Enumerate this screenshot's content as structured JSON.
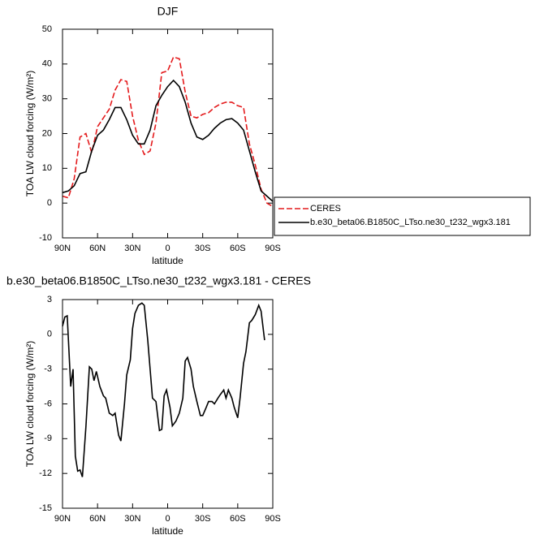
{
  "chart_data": [
    {
      "type": "line",
      "title": "DJF",
      "x": [
        90,
        85,
        80,
        75,
        70,
        65,
        60,
        55,
        50,
        45,
        40,
        35,
        30,
        25,
        20,
        15,
        10,
        5,
        0,
        -5,
        -10,
        -15,
        -20,
        -25,
        -30,
        -35,
        -40,
        -45,
        -50,
        -55,
        -60,
        -65,
        -70,
        -75,
        -80,
        -85,
        -90
      ],
      "series": [
        {
          "name": "CERES",
          "color": "#e41a1c",
          "dashed": true,
          "values": [
            2,
            1.5,
            7,
            19,
            20,
            14.5,
            22,
            24.5,
            27,
            32.5,
            35.5,
            35,
            25,
            18,
            14,
            15,
            23,
            37.5,
            38,
            42,
            41.5,
            32,
            25,
            24.5,
            25.5,
            26,
            27.5,
            28.5,
            29,
            29,
            28,
            27.5,
            17,
            11,
            4,
            0,
            -1
          ]
        },
        {
          "name": "b.e30_beta06.B1850C_LTso.ne30_t232_wgx3.181",
          "color": "#000000",
          "dashed": false,
          "values": [
            3,
            3.5,
            5,
            8.5,
            9,
            15,
            19.5,
            21,
            24,
            27.5,
            27.5,
            24,
            19.5,
            17,
            17,
            21,
            28,
            31,
            33.5,
            35.3,
            33.5,
            29,
            23,
            19,
            18.3,
            19.5,
            21.5,
            23,
            24,
            24.3,
            23,
            21,
            15,
            9,
            3.5,
            2,
            0.5
          ]
        }
      ],
      "xlim": [
        90,
        -90
      ],
      "xticks": [
        {
          "value": 90,
          "label": "90N"
        },
        {
          "value": 60,
          "label": "60N"
        },
        {
          "value": 30,
          "label": "30N"
        },
        0,
        {
          "value": -30,
          "label": "30S"
        },
        {
          "value": -60,
          "label": "60S"
        },
        {
          "value": -90,
          "label": "90S"
        }
      ],
      "ylim": [
        -10,
        50
      ],
      "yticks": [
        -10,
        0,
        10,
        20,
        30,
        40,
        50
      ],
      "xlabel": "latitude",
      "ylabel": "TOA LW cloud forcing (W/m²)",
      "legend": "right"
    },
    {
      "type": "line",
      "title": "b.e30_beta06.B1850C_LTso.ne30_t232_wgx3.181 - CERES",
      "x": [
        90,
        88,
        86,
        83,
        81,
        79,
        77,
        75,
        73,
        70,
        67,
        65,
        63,
        61,
        58,
        55,
        53,
        50,
        47,
        45,
        42,
        40,
        37,
        35,
        32,
        30,
        28,
        25,
        22,
        20,
        17,
        15,
        13,
        10,
        7,
        5,
        3,
        1,
        -2,
        -4,
        -7,
        -10,
        -13,
        -15,
        -17,
        -20,
        -22,
        -25,
        -28,
        -30,
        -33,
        -35,
        -38,
        -40,
        -43,
        -45,
        -48,
        -50,
        -52,
        -55,
        -57,
        -60,
        -62,
        -65,
        -67,
        -70,
        -72,
        -75,
        -78,
        -80,
        -83
      ],
      "series": [
        {
          "color": "#000000",
          "dashed": false,
          "values": [
            0.7,
            1.5,
            1.6,
            -4.5,
            -3,
            -10.5,
            -11.8,
            -11.7,
            -12.3,
            -8,
            -2.8,
            -3,
            -4,
            -3.2,
            -4.5,
            -5.3,
            -5.5,
            -6.8,
            -7,
            -6.8,
            -8.7,
            -9.2,
            -6,
            -3.5,
            -2.2,
            0.5,
            1.8,
            2.5,
            2.7,
            2.5,
            -0.5,
            -3,
            -5.5,
            -5.8,
            -8.3,
            -8.2,
            -5.3,
            -4.8,
            -6.3,
            -7.9,
            -7.5,
            -6.8,
            -5.5,
            -2.3,
            -2,
            -3,
            -4.5,
            -5.8,
            -7,
            -7,
            -6.3,
            -5.8,
            -5.8,
            -6,
            -5.5,
            -5.2,
            -4.8,
            -5.5,
            -4.8,
            -5.5,
            -6.3,
            -7.2,
            -5.5,
            -2.5,
            -1.5,
            1,
            1.2,
            1.7,
            2.5,
            2,
            -0.5
          ]
        }
      ],
      "xlim": [
        90,
        -90
      ],
      "xticks": [
        {
          "value": 90,
          "label": "90N"
        },
        {
          "value": 60,
          "label": "60N"
        },
        {
          "value": 30,
          "label": "30N"
        },
        0,
        {
          "value": -30,
          "label": "30S"
        },
        {
          "value": -60,
          "label": "60S"
        },
        {
          "value": -90,
          "label": "90S"
        }
      ],
      "ylim": [
        -15,
        3
      ],
      "yticks": [
        -15,
        -12,
        -9,
        -6,
        -3,
        0,
        3
      ],
      "xlabel": "latitude",
      "ylabel": "TOA LW cloud forcing (W/m²)"
    }
  ]
}
